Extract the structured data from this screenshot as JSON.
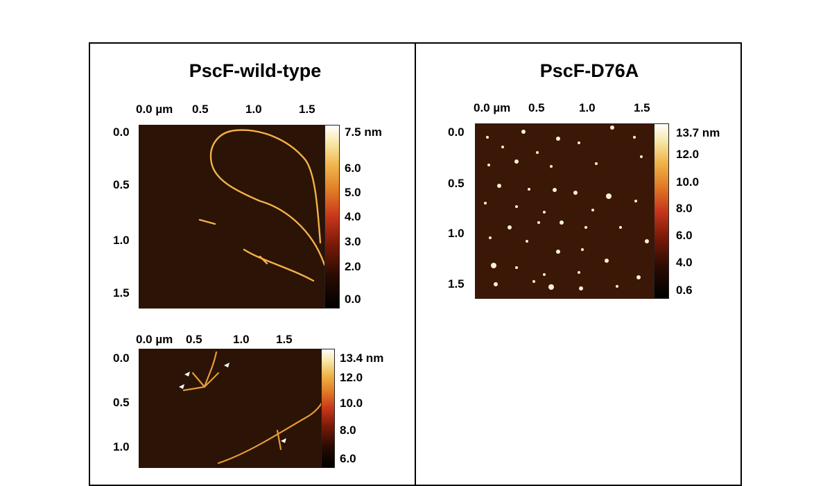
{
  "panels": [
    {
      "title": "PscF-wild-type",
      "images": [
        {
          "x_axis": [
            "0.0 µm",
            "0.5",
            "1.0",
            "1.5"
          ],
          "y_axis": [
            "0.0",
            "0.5",
            "1.0",
            "1.5"
          ],
          "colorbar": [
            "7.5 nm",
            "6.0",
            "5.0",
            "4.0",
            "3.0",
            "2.0",
            "0.0"
          ]
        },
        {
          "x_axis": [
            "0.0 µm",
            "0.5",
            "1.0",
            "1.5"
          ],
          "y_axis": [
            "0.0",
            "0.5",
            "1.0"
          ],
          "colorbar": [
            "13.4 nm",
            "12.0",
            "10.0",
            "8.0",
            "6.0"
          ]
        }
      ]
    },
    {
      "title": "PscF-D76A",
      "images": [
        {
          "x_axis": [
            "0.0 µm",
            "0.5",
            "1.0",
            "1.5"
          ],
          "y_axis": [
            "0.0",
            "0.5",
            "1.0",
            "1.5"
          ],
          "colorbar": [
            "13.7 nm",
            "12.0",
            "10.0",
            "8.0",
            "6.0",
            "4.0",
            "0.6"
          ]
        }
      ]
    }
  ],
  "colors": {
    "background": "#2b1305",
    "fibril": "#f3b14a",
    "particle": "#fff4d6"
  }
}
